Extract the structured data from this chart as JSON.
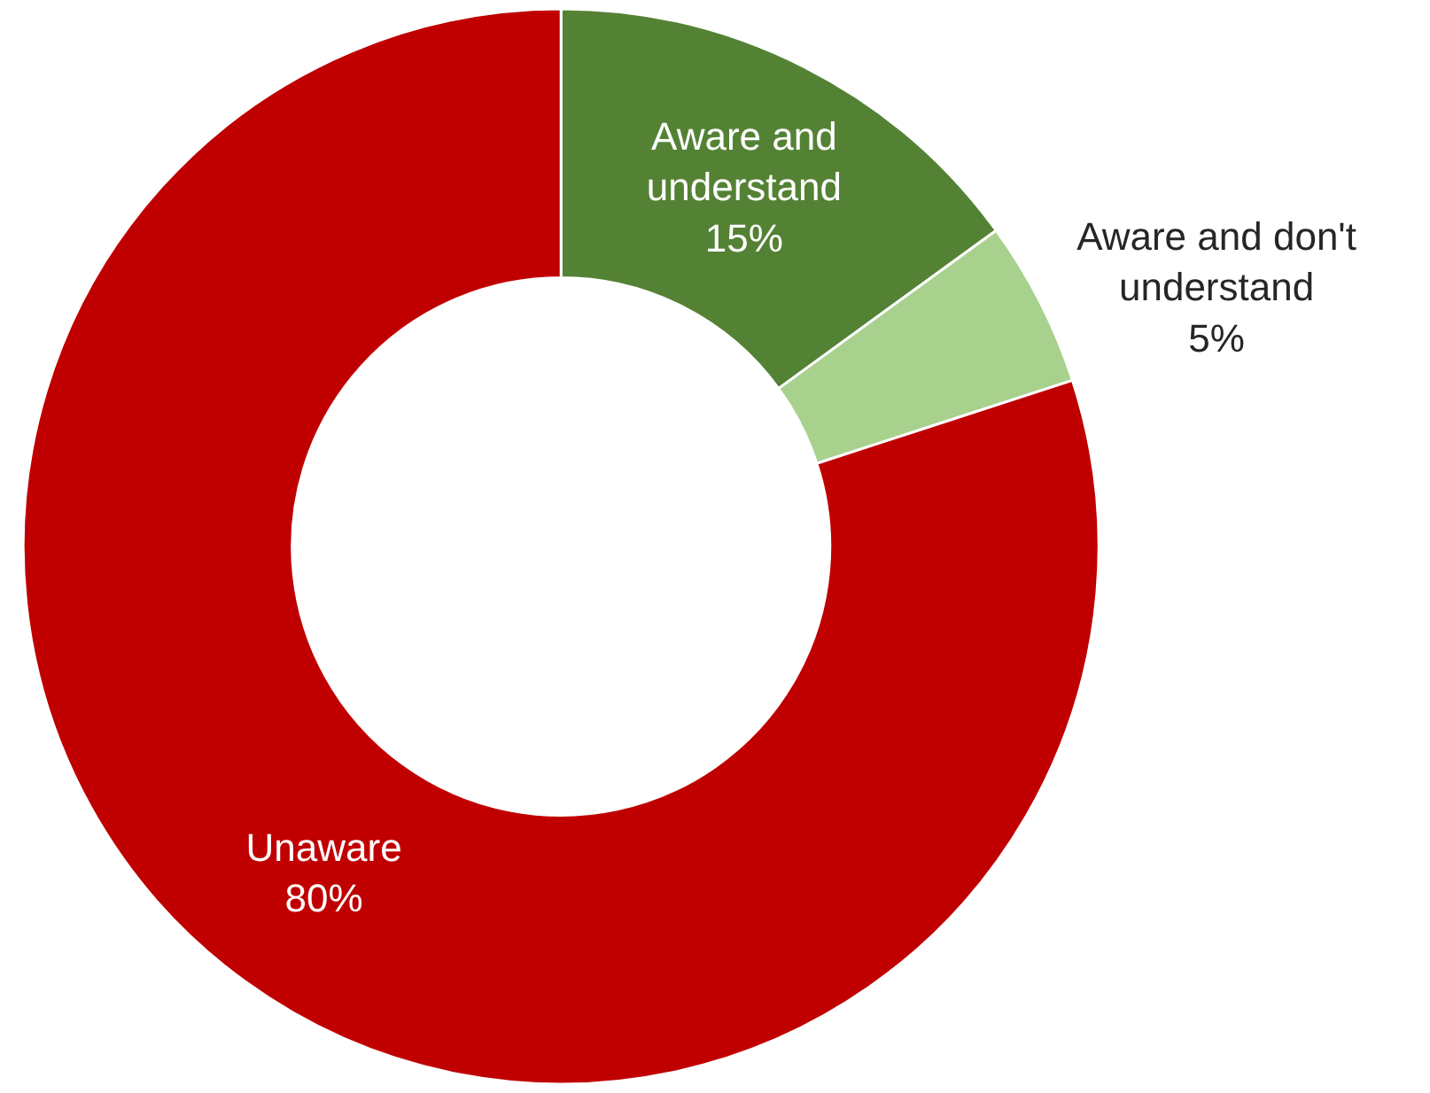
{
  "chart_data": {
    "type": "donut",
    "categories": [
      "Aware and understand",
      "Aware and don't understand",
      "Unaware"
    ],
    "values": [
      15,
      5,
      80
    ],
    "colors": [
      "#548235",
      "#a9d18e",
      "#c00000"
    ],
    "value_labels": [
      "15%",
      "5%",
      "80%"
    ]
  }
}
